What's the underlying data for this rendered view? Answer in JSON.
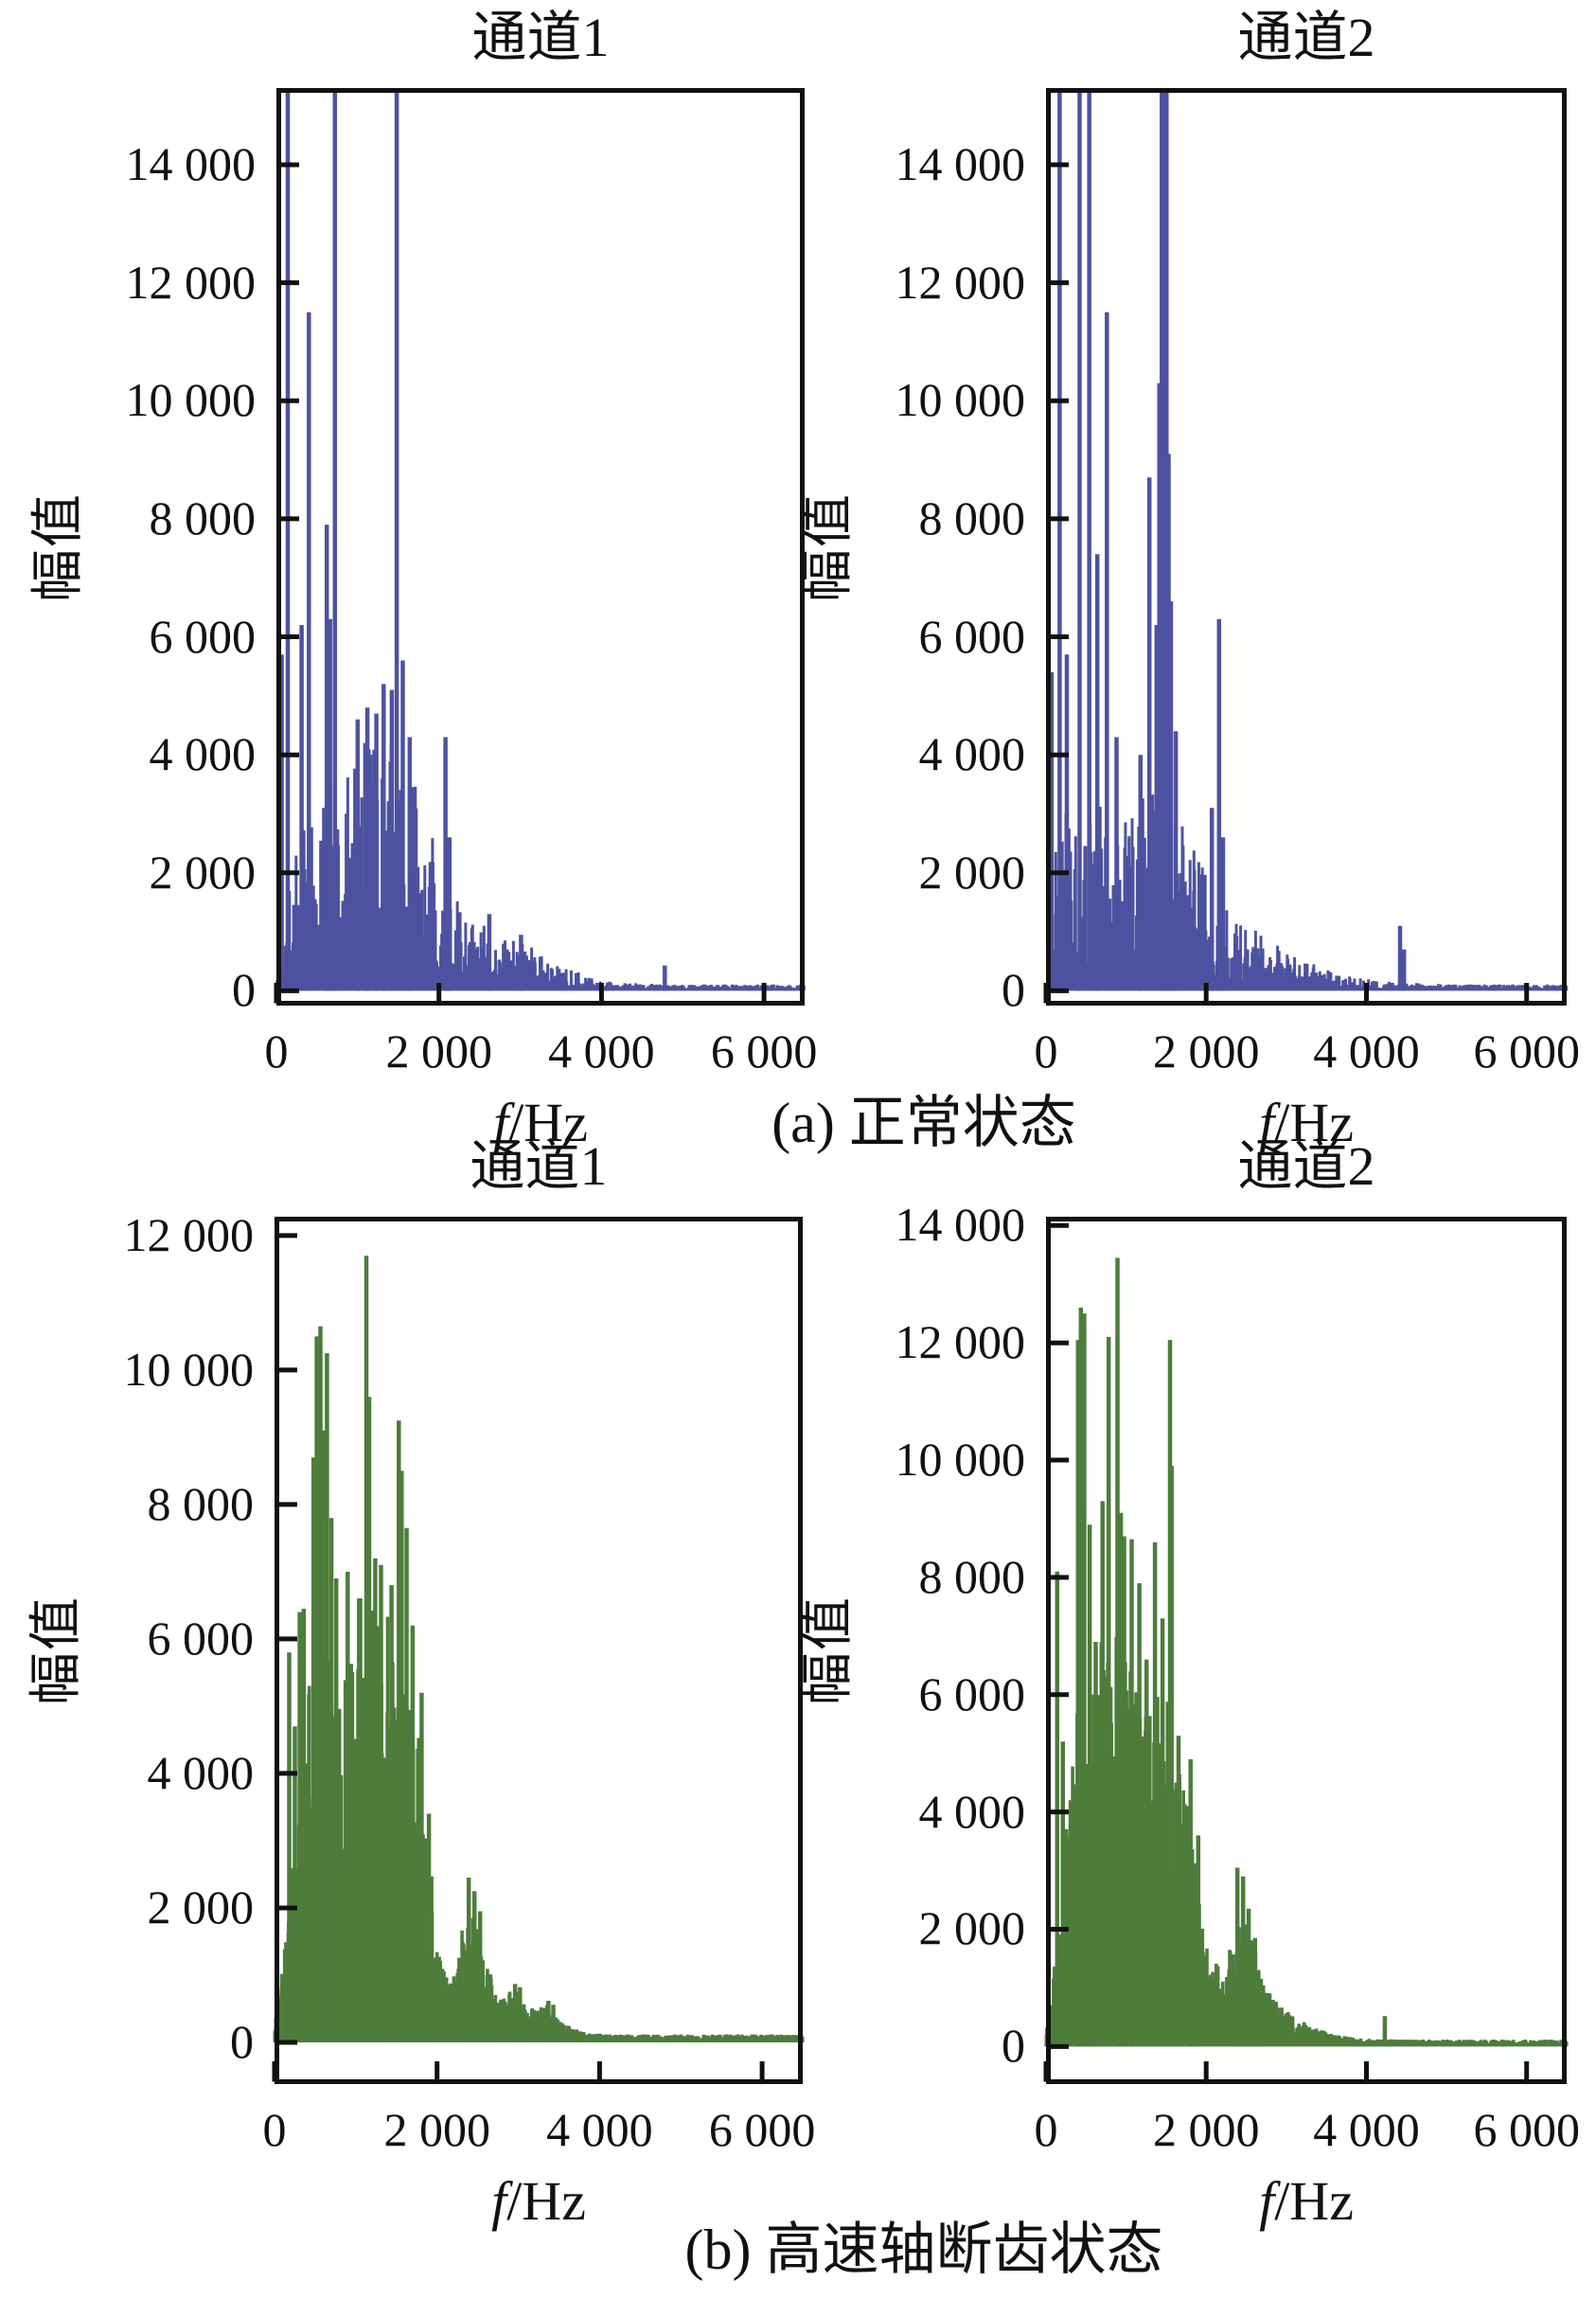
{
  "figure": {
    "background": "#ffffff",
    "caption_a": "(a) 正常状态",
    "caption_b": "(b) 高速轴断齿状态"
  },
  "chart_data": [
    {
      "id": "normal-channel-1",
      "type": "line",
      "subtype": "frequency-spectrum",
      "condition": "正常状态",
      "title": "通道1",
      "ylabel": "幅值",
      "xlabel_italic": "f",
      "xlabel_rest": "/Hz",
      "color": "#4d52a0",
      "xlim": [
        0,
        6500
      ],
      "ylim": [
        -250,
        15300
      ],
      "xticks": [
        0,
        2000,
        4000,
        6000
      ],
      "xtick_labels": [
        "0",
        "2 000",
        "4 000",
        "6 000"
      ],
      "yticks": [
        0,
        2000,
        4000,
        6000,
        8000,
        10000,
        12000,
        14000
      ],
      "ytick_labels": [
        "0",
        "2 000",
        "4 000",
        "6 000",
        "8 000",
        "10 000",
        "12 000",
        "14 000"
      ],
      "clipped_peaks_note": "peaks above 15300 are clipped at frame top",
      "noise_floor": 90,
      "envelope": [
        [
          0,
          350
        ],
        [
          80,
          1800
        ],
        [
          200,
          2600
        ],
        [
          400,
          3000
        ],
        [
          600,
          3400
        ],
        [
          800,
          3900
        ],
        [
          1000,
          4400
        ],
        [
          1200,
          4800
        ],
        [
          1350,
          5000
        ],
        [
          1500,
          4500
        ],
        [
          1700,
          3500
        ],
        [
          1900,
          2700
        ],
        [
          2050,
          2100
        ],
        [
          2200,
          1600
        ],
        [
          2400,
          1250
        ],
        [
          2700,
          1000
        ],
        [
          3000,
          900
        ],
        [
          3300,
          600
        ],
        [
          3600,
          380
        ],
        [
          3900,
          220
        ],
        [
          4200,
          140
        ],
        [
          4800,
          120
        ],
        [
          5500,
          105
        ],
        [
          6500,
          95
        ]
      ],
      "peaks": [
        [
          30,
          3700
        ],
        [
          65,
          5700
        ],
        [
          140,
          15500
        ],
        [
          310,
          6200
        ],
        [
          400,
          11500
        ],
        [
          620,
          7900
        ],
        [
          660,
          6300
        ],
        [
          720,
          15500
        ],
        [
          1000,
          4600
        ],
        [
          1120,
          4800
        ],
        [
          1230,
          4700
        ],
        [
          1320,
          5200
        ],
        [
          1420,
          5100
        ],
        [
          1480,
          15500
        ],
        [
          1555,
          5600
        ],
        [
          1640,
          4300
        ],
        [
          2080,
          4300
        ],
        [
          2130,
          2600
        ],
        [
          2620,
          1300
        ],
        [
          3010,
          950
        ],
        [
          4780,
          430
        ]
      ],
      "render_hints": {
        "seed": 7,
        "df": 9,
        "min_fill": 0.12,
        "pow": 2.0,
        "grass_width": 3.0,
        "peak_width": 4.5
      }
    },
    {
      "id": "normal-channel-2",
      "type": "line",
      "subtype": "frequency-spectrum",
      "condition": "正常状态",
      "title": "通道2",
      "ylabel": "幅值",
      "xlabel_italic": "f",
      "xlabel_rest": "/Hz",
      "color": "#4d52a0",
      "xlim": [
        0,
        6500
      ],
      "ylim": [
        -250,
        15300
      ],
      "xticks": [
        0,
        2000,
        4000,
        6000
      ],
      "xtick_labels": [
        "0",
        "2 000",
        "4 000",
        "6 000"
      ],
      "yticks": [
        0,
        2000,
        4000,
        6000,
        8000,
        10000,
        12000,
        14000
      ],
      "ytick_labels": [
        "0",
        "2 000",
        "4 000",
        "6 000",
        "8 000",
        "10 000",
        "12 000",
        "14 000"
      ],
      "clipped_peaks_note": "peaks above 15300 are clipped at frame top",
      "noise_floor": 90,
      "envelope": [
        [
          0,
          500
        ],
        [
          80,
          2600
        ],
        [
          250,
          3200
        ],
        [
          450,
          3000
        ],
        [
          650,
          3400
        ],
        [
          850,
          3200
        ],
        [
          1050,
          3000
        ],
        [
          1250,
          3700
        ],
        [
          1450,
          4300
        ],
        [
          1650,
          3200
        ],
        [
          1850,
          2500
        ],
        [
          2050,
          1900
        ],
        [
          2250,
          1400
        ],
        [
          2500,
          1100
        ],
        [
          2800,
          900
        ],
        [
          3100,
          650
        ],
        [
          3500,
          380
        ],
        [
          3900,
          220
        ],
        [
          4300,
          150
        ],
        [
          5000,
          115
        ],
        [
          6500,
          95
        ]
      ],
      "peaks": [
        [
          70,
          5400
        ],
        [
          170,
          15500
        ],
        [
          260,
          5700
        ],
        [
          420,
          15500
        ],
        [
          540,
          15500
        ],
        [
          640,
          7400
        ],
        [
          760,
          11500
        ],
        [
          880,
          4300
        ],
        [
          1180,
          4000
        ],
        [
          1290,
          8700
        ],
        [
          1380,
          6200
        ],
        [
          1415,
          10300
        ],
        [
          1445,
          15500
        ],
        [
          1475,
          15500
        ],
        [
          1505,
          15500
        ],
        [
          1530,
          9100
        ],
        [
          1560,
          6600
        ],
        [
          1620,
          4400
        ],
        [
          2070,
          3100
        ],
        [
          2160,
          6300
        ],
        [
          2210,
          2600
        ],
        [
          4420,
          1100
        ],
        [
          4470,
          700
        ]
      ],
      "render_hints": {
        "seed": 13,
        "df": 9,
        "min_fill": 0.12,
        "pow": 2.0,
        "grass_width": 3.0,
        "peak_width": 4.5
      }
    },
    {
      "id": "fault-channel-1",
      "type": "line",
      "subtype": "frequency-spectrum",
      "condition": "高速轴断齿状态",
      "title": "通道1",
      "ylabel": "幅值",
      "xlabel_italic": "f",
      "xlabel_rest": "/Hz",
      "color": "#4d7c3b",
      "xlim": [
        0,
        6500
      ],
      "ylim": [
        -620,
        12280
      ],
      "xticks": [
        0,
        2000,
        4000,
        6000
      ],
      "xtick_labels": [
        "0",
        "2 000",
        "4 000",
        "6 000"
      ],
      "yticks": [
        0,
        2000,
        4000,
        6000,
        8000,
        10000,
        12000
      ],
      "ytick_labels": [
        "0",
        "2 000",
        "4 000",
        "6 000",
        "8 000",
        "10 000",
        "12 000"
      ],
      "noise_floor": 100,
      "envelope": [
        [
          0,
          250
        ],
        [
          120,
          1400
        ],
        [
          250,
          3200
        ],
        [
          400,
          5800
        ],
        [
          550,
          6600
        ],
        [
          700,
          5800
        ],
        [
          850,
          5300
        ],
        [
          1000,
          6400
        ],
        [
          1150,
          7000
        ],
        [
          1300,
          6300
        ],
        [
          1450,
          6400
        ],
        [
          1600,
          6100
        ],
        [
          1750,
          4900
        ],
        [
          1880,
          3300
        ],
        [
          2000,
          1500
        ],
        [
          2150,
          900
        ],
        [
          2300,
          1700
        ],
        [
          2450,
          2100
        ],
        [
          2600,
          1300
        ],
        [
          2750,
          650
        ],
        [
          2950,
          800
        ],
        [
          3100,
          520
        ],
        [
          3350,
          560
        ],
        [
          3550,
          280
        ],
        [
          3800,
          160
        ],
        [
          4200,
          110
        ],
        [
          5000,
          90
        ],
        [
          6500,
          80
        ]
      ],
      "peaks": [
        [
          180,
          5800
        ],
        [
          250,
          4700
        ],
        [
          310,
          6400
        ],
        [
          360,
          6450
        ],
        [
          480,
          8700
        ],
        [
          520,
          10500
        ],
        [
          565,
          10650
        ],
        [
          610,
          9100
        ],
        [
          645,
          10250
        ],
        [
          700,
          7800
        ],
        [
          760,
          6900
        ],
        [
          900,
          7000
        ],
        [
          1040,
          6600
        ],
        [
          1130,
          11700
        ],
        [
          1165,
          9600
        ],
        [
          1240,
          7200
        ],
        [
          1310,
          7100
        ],
        [
          1440,
          6800
        ],
        [
          1530,
          9250
        ],
        [
          1565,
          8500
        ],
        [
          1625,
          7650
        ],
        [
          1700,
          6200
        ],
        [
          1810,
          5200
        ],
        [
          1900,
          3400
        ],
        [
          2390,
          2450
        ],
        [
          2460,
          2250
        ],
        [
          2530,
          1950
        ],
        [
          2960,
          870
        ],
        [
          3020,
          820
        ],
        [
          3370,
          620
        ],
        [
          3430,
          560
        ]
      ],
      "render_hints": {
        "seed": 21,
        "df": 7,
        "min_fill": 0.32,
        "pow": 1.1,
        "grass_width": 3.6,
        "peak_width": 4.5
      }
    },
    {
      "id": "fault-channel-2",
      "type": "line",
      "subtype": "frequency-spectrum",
      "condition": "高速轴断齿状态",
      "title": "通道2",
      "ylabel": "幅值",
      "xlabel_italic": "f",
      "xlabel_rest": "/Hz",
      "color": "#4d7c3b",
      "xlim": [
        0,
        6500
      ],
      "ylim": [
        -640,
        14150
      ],
      "xticks": [
        0,
        2000,
        4000,
        6000
      ],
      "xtick_labels": [
        "0",
        "2 000",
        "4 000",
        "6 000"
      ],
      "yticks": [
        0,
        2000,
        4000,
        6000,
        8000,
        10000,
        12000,
        14000
      ],
      "ytick_labels": [
        "0",
        "2 000",
        "4 000",
        "6 000",
        "8 000",
        "10 000",
        "12 000",
        "14 000"
      ],
      "noise_floor": 100,
      "envelope": [
        [
          0,
          300
        ],
        [
          120,
          1700
        ],
        [
          250,
          3600
        ],
        [
          400,
          6400
        ],
        [
          550,
          6200
        ],
        [
          700,
          7000
        ],
        [
          850,
          7400
        ],
        [
          1000,
          6800
        ],
        [
          1150,
          6100
        ],
        [
          1300,
          6000
        ],
        [
          1450,
          6300
        ],
        [
          1600,
          5400
        ],
        [
          1750,
          4300
        ],
        [
          1900,
          2900
        ],
        [
          2050,
          1400
        ],
        [
          2250,
          1600
        ],
        [
          2400,
          2300
        ],
        [
          2550,
          2000
        ],
        [
          2700,
          1100
        ],
        [
          2900,
          750
        ],
        [
          3100,
          500
        ],
        [
          3400,
          300
        ],
        [
          3700,
          180
        ],
        [
          4100,
          130
        ],
        [
          5000,
          100
        ],
        [
          6500,
          85
        ]
      ],
      "peaks": [
        [
          140,
          8100
        ],
        [
          210,
          5200
        ],
        [
          400,
          12050
        ],
        [
          435,
          12600
        ],
        [
          478,
          12500
        ],
        [
          545,
          8900
        ],
        [
          620,
          6900
        ],
        [
          705,
          9300
        ],
        [
          782,
          12100
        ],
        [
          892,
          13450
        ],
        [
          935,
          9100
        ],
        [
          975,
          8700
        ],
        [
          1070,
          8650
        ],
        [
          1165,
          7900
        ],
        [
          1255,
          6600
        ],
        [
          1360,
          8600
        ],
        [
          1455,
          7300
        ],
        [
          1548,
          12050
        ],
        [
          1568,
          9900
        ],
        [
          1655,
          5300
        ],
        [
          1805,
          4900
        ],
        [
          1900,
          3600
        ],
        [
          2390,
          3050
        ],
        [
          2460,
          2900
        ],
        [
          2530,
          2350
        ],
        [
          2610,
          1850
        ],
        [
          4230,
          520
        ]
      ],
      "render_hints": {
        "seed": 42,
        "df": 7,
        "min_fill": 0.32,
        "pow": 1.1,
        "grass_width": 3.6,
        "peak_width": 4.5
      }
    }
  ]
}
